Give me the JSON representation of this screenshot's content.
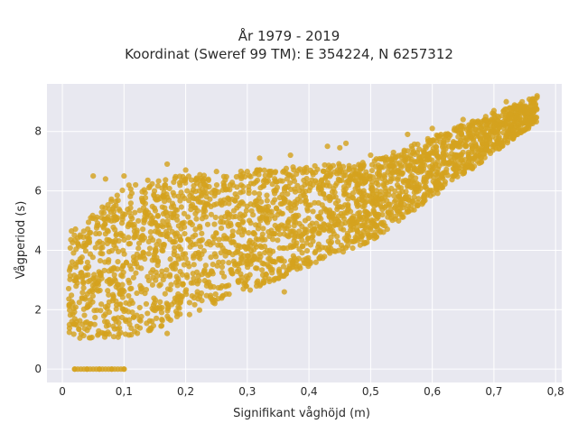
{
  "chart_data": {
    "type": "scatter",
    "title_lines": [
      "År 1979 - 2019",
      "Koordinat (Sweref 99 TM): E 354224, N 6257312"
    ],
    "xlabel": "Signifikant våghöjd (m)",
    "ylabel": "Vågperiod (s)",
    "xlim": [
      -0.025,
      0.81
    ],
    "ylim": [
      -0.45,
      9.6
    ],
    "xticks": [
      0,
      0.1,
      0.2,
      0.3,
      0.4,
      0.5,
      0.6,
      0.7,
      0.8
    ],
    "xtick_labels": [
      "0",
      "0,1",
      "0,2",
      "0,3",
      "0,4",
      "0,5",
      "0,6",
      "0,7",
      "0,8"
    ],
    "yticks": [
      0,
      2,
      4,
      6,
      8
    ],
    "ytick_labels": [
      "0",
      "2",
      "4",
      "6",
      "8"
    ],
    "grid": true,
    "series": [
      {
        "color": "#D4A21F",
        "density_regions": [
          {
            "x_range": [
              0.01,
              0.12
            ],
            "lower_y": [
              1.0,
              1.1
            ],
            "upper_y": [
              4.6,
              6.4
            ]
          },
          {
            "x_range": [
              0.12,
              0.5
            ],
            "lower_y": [
              1.1,
              4.3
            ],
            "upper_y": [
              6.4,
              7.0
            ]
          },
          {
            "x_range": [
              0.5,
              0.77
            ],
            "lower_y": [
              4.3,
              8.3
            ],
            "upper_y": [
              7.0,
              9.2
            ]
          }
        ],
        "zero_band": {
          "x_range": [
            0.02,
            0.1
          ],
          "y": 0
        },
        "sample_points": [
          [
            0.02,
            0
          ],
          [
            0.04,
            0
          ],
          [
            0.06,
            0
          ],
          [
            0.08,
            0
          ],
          [
            0.1,
            0
          ],
          [
            0.05,
            6.5
          ],
          [
            0.07,
            6.4
          ],
          [
            0.1,
            6.5
          ],
          [
            0.17,
            6.9
          ],
          [
            0.2,
            6.7
          ],
          [
            0.25,
            6.65
          ],
          [
            0.3,
            6.65
          ],
          [
            0.32,
            7.1
          ],
          [
            0.37,
            7.2
          ],
          [
            0.43,
            7.5
          ],
          [
            0.45,
            7.45
          ],
          [
            0.46,
            7.6
          ],
          [
            0.5,
            7.2
          ],
          [
            0.56,
            7.9
          ],
          [
            0.6,
            8.1
          ],
          [
            0.65,
            8.4
          ],
          [
            0.7,
            8.7
          ],
          [
            0.72,
            9.0
          ],
          [
            0.77,
            9.2
          ],
          [
            0.17,
            1.2
          ],
          [
            0.14,
            1.3
          ],
          [
            0.03,
            3.6
          ],
          [
            0.36,
            2.6
          ]
        ]
      }
    ]
  }
}
